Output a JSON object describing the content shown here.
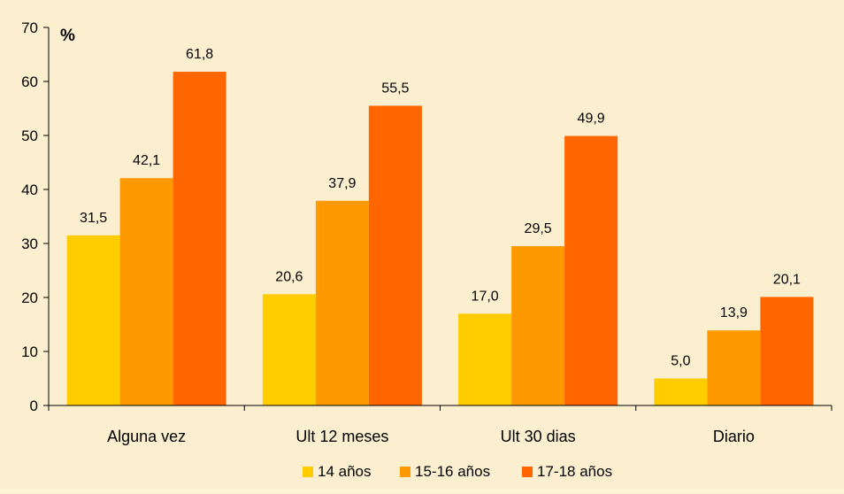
{
  "chart_data": {
    "type": "bar",
    "unit_label": "%",
    "title": "",
    "xlabel": "",
    "ylabel": "",
    "ylim": [
      0,
      70
    ],
    "yticks": [
      0,
      10,
      20,
      30,
      40,
      50,
      60,
      70
    ],
    "categories": [
      "Alguna vez",
      "Ult 12 meses",
      "Ult 30 dias",
      "Diario"
    ],
    "series": [
      {
        "name": "14 años",
        "color": "#ffcc00",
        "values": [
          31.5,
          20.6,
          17.0,
          5.0
        ],
        "labels": [
          "31,5",
          "20,6",
          "17,0",
          "5,0"
        ]
      },
      {
        "name": "15-16 años",
        "color": "#ff9900",
        "values": [
          42.1,
          37.9,
          29.5,
          13.9
        ],
        "labels": [
          "42,1",
          "37,9",
          "29,5",
          "13,9"
        ]
      },
      {
        "name": "17-18 años",
        "color": "#ff6600",
        "values": [
          61.8,
          55.5,
          49.9,
          20.1
        ],
        "labels": [
          "61,8",
          "55,5",
          "49,9",
          "20,1"
        ]
      }
    ],
    "grid": false,
    "legend_position": "bottom",
    "background_color": "#fbefcf"
  }
}
